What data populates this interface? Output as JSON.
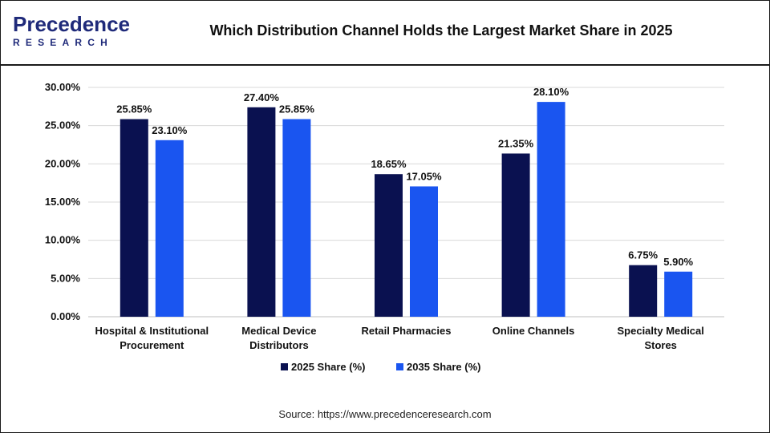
{
  "header": {
    "logo_top": "Precedence",
    "logo_bottom": "RESEARCH",
    "title": "Which Distribution Channel Holds the Largest Market Share in 2025"
  },
  "source": "Source: https://www.precedenceresearch.com",
  "colors": {
    "series_2025": "#0a1150",
    "series_2035": "#1a55f0",
    "grid": "#d9d9d9",
    "text": "#111111"
  },
  "chart_data": {
    "type": "bar",
    "title": "Which Distribution Channel Holds the Largest Market Share in 2025",
    "xlabel": "",
    "ylabel": "",
    "ylim": [
      0,
      30
    ],
    "yticks": [
      "0.00%",
      "5.00%",
      "10.00%",
      "15.00%",
      "20.00%",
      "25.00%",
      "30.00%"
    ],
    "grid": true,
    "legend_position": "bottom",
    "categories": [
      [
        "Hospital & Institutional",
        "Procurement"
      ],
      [
        "Medical Device",
        "Distributors"
      ],
      [
        "Retail Pharmacies"
      ],
      [
        "Online Channels"
      ],
      [
        "Specialty Medical",
        "Stores"
      ]
    ],
    "series": [
      {
        "name": "2025 Share (%)",
        "values": [
          25.85,
          27.4,
          18.65,
          21.35,
          6.75
        ],
        "labels": [
          "25.85%",
          "27.40%",
          "18.65%",
          "21.35%",
          "6.75%"
        ]
      },
      {
        "name": "2035 Share (%)",
        "values": [
          23.1,
          25.85,
          17.05,
          28.1,
          5.9
        ],
        "labels": [
          "23.10%",
          "25.85%",
          "17.05%",
          "28.10%",
          "5.90%"
        ]
      }
    ]
  }
}
